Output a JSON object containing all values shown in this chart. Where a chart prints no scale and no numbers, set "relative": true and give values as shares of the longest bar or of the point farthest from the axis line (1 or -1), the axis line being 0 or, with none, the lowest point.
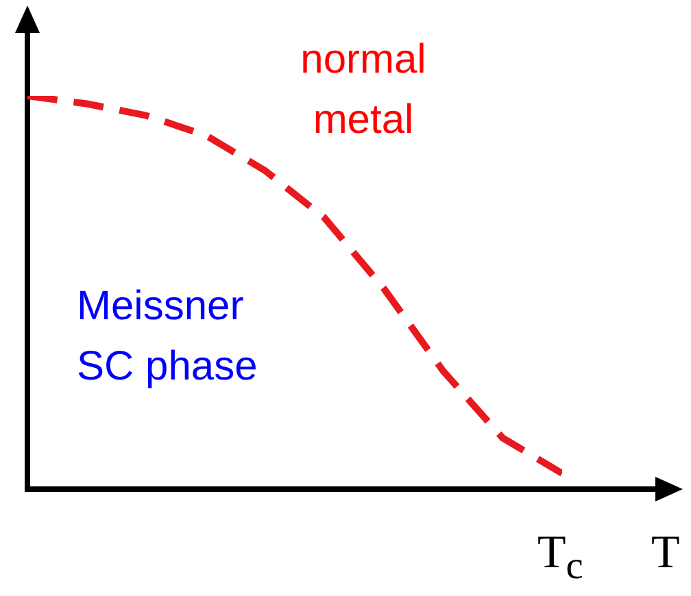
{
  "chart_data": {
    "type": "line",
    "relative": true,
    "xlabel": "T",
    "categories": [
      null,
      null,
      null,
      null,
      null,
      null,
      null,
      null,
      null,
      null
    ],
    "series": [
      {
        "color": "#e8191f",
        "values": [
          1,
          0.98,
          0.95,
          0.9,
          0.81,
          0.69,
          0.51,
          0.3,
          0.13,
          0.04
        ]
      }
    ],
    "line_style": "dashed",
    "marker": "none",
    "grid": false,
    "annotations": [
      "normal metal",
      "Meissner SC phase",
      "T$_{c}$"
    ]
  }
}
